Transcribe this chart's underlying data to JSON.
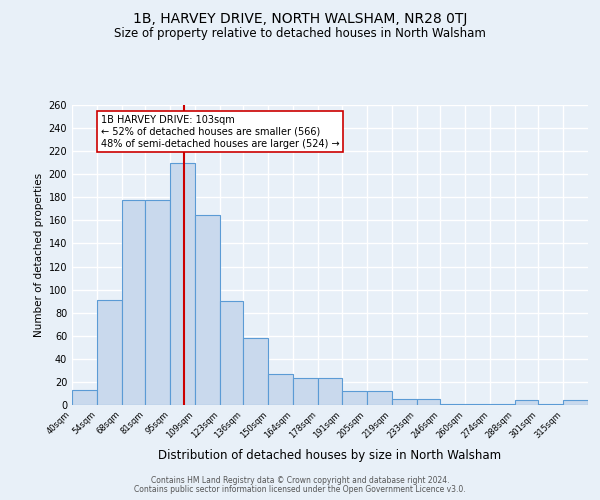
{
  "title": "1B, HARVEY DRIVE, NORTH WALSHAM, NR28 0TJ",
  "subtitle": "Size of property relative to detached houses in North Walsham",
  "xlabel": "Distribution of detached houses by size in North Walsham",
  "ylabel": "Number of detached properties",
  "bar_edges": [
    40,
    54,
    68,
    81,
    95,
    109,
    123,
    136,
    150,
    164,
    178,
    191,
    205,
    219,
    233,
    246,
    260,
    274,
    288,
    301,
    315,
    329
  ],
  "bar_heights": [
    13,
    91,
    178,
    178,
    210,
    165,
    90,
    58,
    27,
    23,
    23,
    12,
    12,
    5,
    5,
    1,
    1,
    1,
    4,
    1,
    4
  ],
  "bar_color": "#c9d9ed",
  "bar_edge_color": "#5b9bd5",
  "ref_line_x": 103,
  "ref_line_color": "#cc0000",
  "annotation_title": "1B HARVEY DRIVE: 103sqm",
  "annotation_line1": "← 52% of detached houses are smaller (566)",
  "annotation_line2": "48% of semi-detached houses are larger (524) →",
  "annotation_box_color": "#ffffff",
  "annotation_box_edge": "#cc0000",
  "ylim": [
    0,
    260
  ],
  "tick_labels": [
    "40sqm",
    "54sqm",
    "68sqm",
    "81sqm",
    "95sqm",
    "109sqm",
    "123sqm",
    "136sqm",
    "150sqm",
    "164sqm",
    "178sqm",
    "191sqm",
    "205sqm",
    "219sqm",
    "233sqm",
    "246sqm",
    "260sqm",
    "274sqm",
    "288sqm",
    "301sqm",
    "315sqm"
  ],
  "footnote1": "Contains HM Land Registry data © Crown copyright and database right 2024.",
  "footnote2": "Contains public sector information licensed under the Open Government Licence v3.0.",
  "background_color": "#e8f0f8",
  "plot_background": "#e8f0f8",
  "grid_color": "#ffffff",
  "title_fontsize": 10,
  "subtitle_fontsize": 8.5,
  "ylabel_fontsize": 7.5,
  "xlabel_fontsize": 8.5,
  "footnote_fontsize": 5.5
}
